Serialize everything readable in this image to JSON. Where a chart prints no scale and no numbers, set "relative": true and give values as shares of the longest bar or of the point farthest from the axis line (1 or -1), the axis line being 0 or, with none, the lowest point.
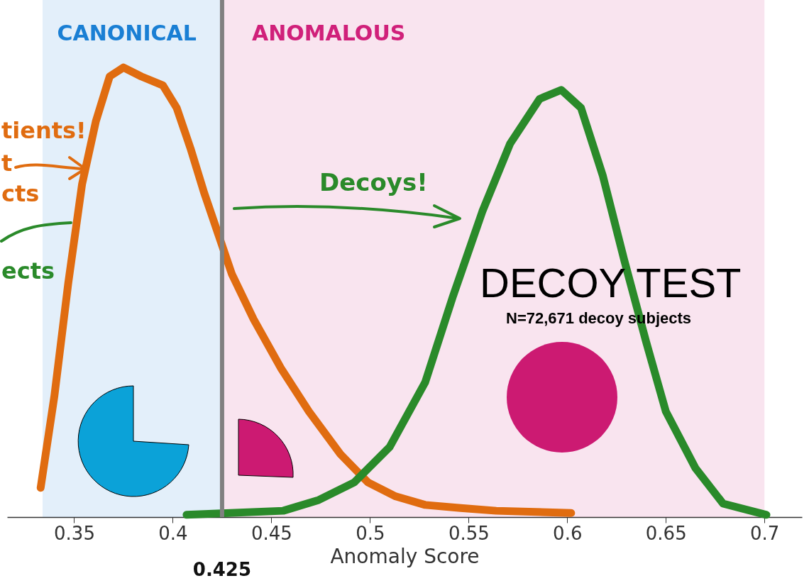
{
  "chart_data": {
    "type": "line",
    "relative": true,
    "xlabel": "Anomaly Score",
    "xlim": [
      0.316,
      0.719
    ],
    "xticks": [
      0.35,
      0.4,
      0.45,
      0.5,
      0.55,
      0.6,
      0.65,
      0.7
    ],
    "grid": false,
    "series": [
      {
        "color": "#e06c10",
        "x": [
          0.333,
          0.34,
          0.347,
          0.354,
          0.361,
          0.368,
          0.375,
          0.384,
          0.395,
          0.402,
          0.409,
          0.416,
          0.423,
          0.43,
          0.441,
          0.455,
          0.469,
          0.485,
          0.499,
          0.513,
          0.528,
          0.546,
          0.564,
          0.602
        ],
        "values": [
          0.065,
          0.27,
          0.52,
          0.74,
          0.88,
          0.98,
          1,
          0.98,
          0.96,
          0.91,
          0.82,
          0.72,
          0.63,
          0.54,
          0.44,
          0.33,
          0.235,
          0.14,
          0.077,
          0.046,
          0.027,
          0.02,
          0.014,
          0.009
        ]
      },
      {
        "color": "#2a8a2a",
        "x": [
          0.407,
          0.456,
          0.474,
          0.492,
          0.51,
          0.528,
          0.542,
          0.557,
          0.571,
          0.586,
          0.597,
          0.607,
          0.618,
          0.629,
          0.64,
          0.65,
          0.665,
          0.679,
          0.701
        ],
        "values": [
          0.005,
          0.014,
          0.038,
          0.077,
          0.156,
          0.3,
          0.49,
          0.68,
          0.83,
          0.93,
          0.95,
          0.91,
          0.76,
          0.57,
          0.39,
          0.235,
          0.109,
          0.03,
          0.005
        ]
      }
    ],
    "ref_lines": [
      {
        "axis": "x",
        "value": 0.425,
        "label": "0.425",
        "color": "#808080"
      }
    ],
    "bands": [
      {
        "axis": "x",
        "from": 0.334,
        "to": 0.425,
        "label": "CANONICAL",
        "color": "#1a7fd4"
      },
      {
        "axis": "x",
        "from": 0.425,
        "to": 0.7,
        "label": "ANOMALOUS",
        "color": "#d0207a"
      }
    ],
    "annotations": [
      "tients!",
      "t",
      "cts",
      "ects",
      "Decoys!",
      "DECOY TEST",
      "N=72,671 decoy subjects"
    ]
  }
}
